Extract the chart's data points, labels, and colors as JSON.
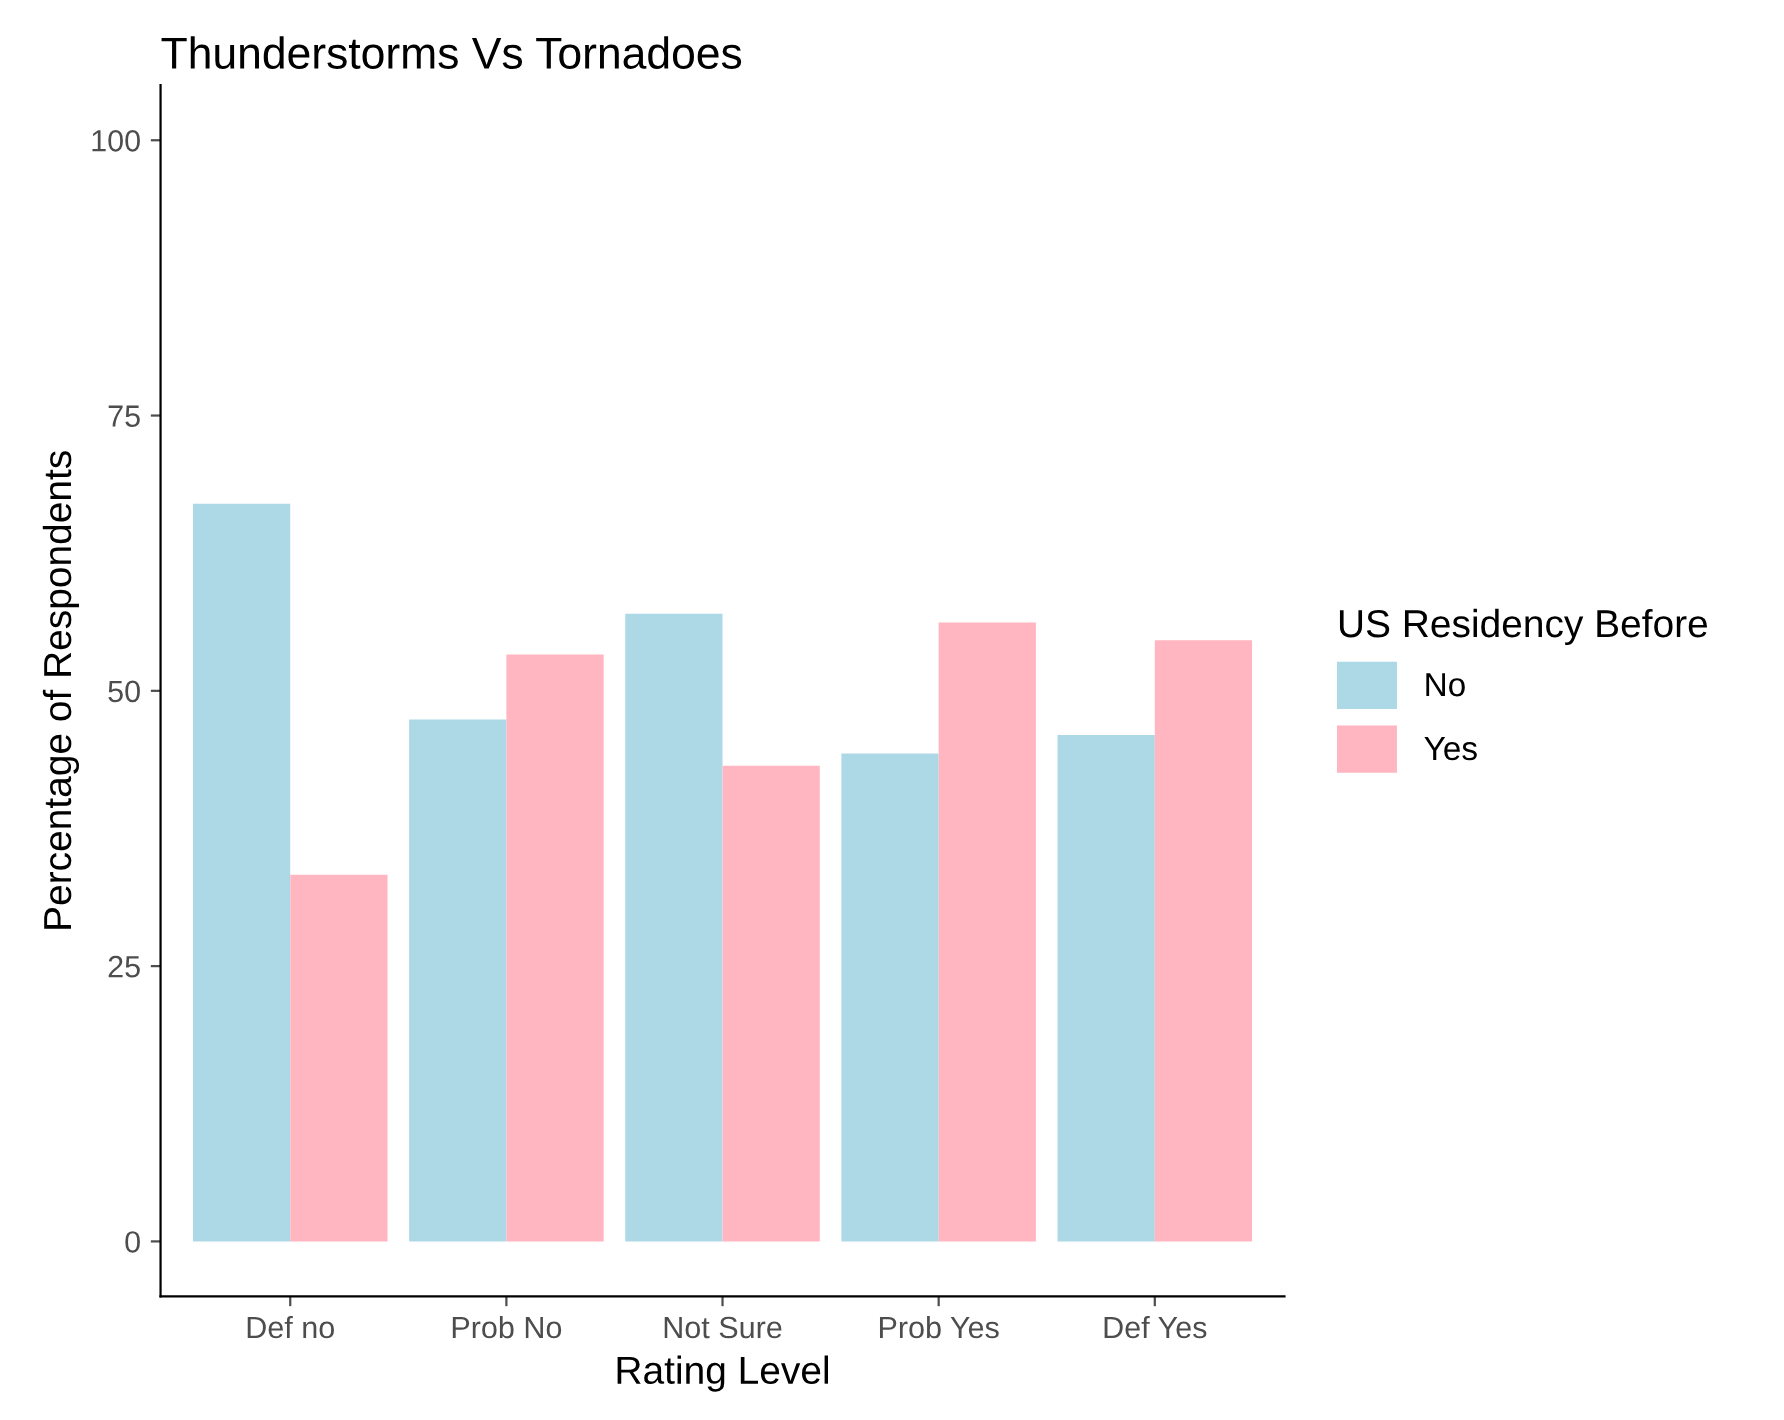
{
  "chart_data": {
    "type": "bar",
    "title": "Thunderstorms Vs Tornadoes",
    "xlabel": "Rating Level",
    "ylabel": "Percentage of Respondents",
    "legend_title": "US Residency Before",
    "categories": [
      "Def no",
      "Prob No",
      "Not Sure",
      "Prob Yes",
      "Def Yes"
    ],
    "series": [
      {
        "name": "No",
        "color": "#add8e6",
        "values": [
          67,
          47.4,
          57,
          44.3,
          46
        ]
      },
      {
        "name": "Yes",
        "color": "#ffb6c1",
        "values": [
          33.3,
          53.3,
          43.2,
          56.2,
          54.6
        ]
      }
    ],
    "ylim": [
      -5,
      105
    ],
    "yticks": [
      0,
      25,
      50,
      75,
      100
    ],
    "grid": false,
    "legend": "right"
  }
}
